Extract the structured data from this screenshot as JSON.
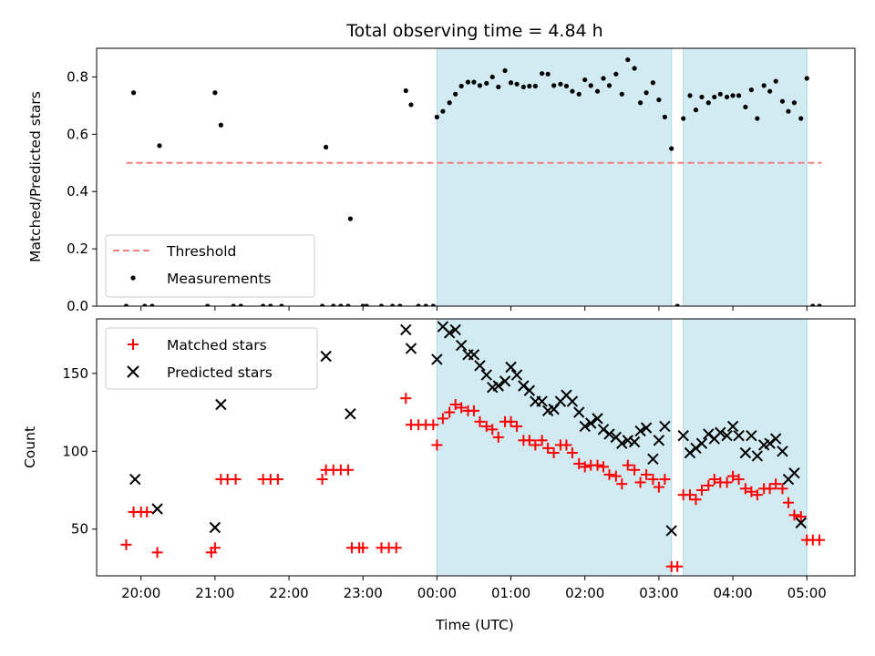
{
  "chart_data": [
    {
      "panel": "top",
      "type": "scatter",
      "title": "Total observing time = 4.84 h",
      "xlabel": "",
      "ylabel": "Matched/Predicted stars",
      "xlim": [
        -4.6,
        5.65
      ],
      "ylim": [
        0,
        0.9
      ],
      "yticks": [
        0.0,
        0.2,
        0.4,
        0.6,
        0.8
      ],
      "ytick_labels": [
        "0.0",
        "0.2",
        "0.4",
        "0.6",
        "0.8"
      ],
      "shaded_intervals": [
        [
          0.0,
          3.17
        ],
        [
          3.33,
          5.0
        ]
      ],
      "shade_color": "#add8e6",
      "threshold": {
        "name": "Threshold",
        "value": 0.5,
        "x_range": [
          -4.2,
          5.2
        ],
        "color": "#f08080"
      },
      "legend": {
        "position": "lower left",
        "entries": [
          "Threshold",
          "Measurements"
        ]
      },
      "series": [
        {
          "name": "Measurements",
          "color": "#000000",
          "points": [
            [
              -4.2,
              0.0
            ],
            [
              -4.1,
              0.745
            ],
            [
              -3.95,
              0.0
            ],
            [
              -3.85,
              0.0
            ],
            [
              -3.75,
              0.56
            ],
            [
              -3.1,
              0.0
            ],
            [
              -3.0,
              0.745
            ],
            [
              -2.92,
              0.632
            ],
            [
              -2.75,
              0.0
            ],
            [
              -2.65,
              0.0
            ],
            [
              -2.35,
              0.0
            ],
            [
              -2.25,
              0.0
            ],
            [
              -2.1,
              0.0
            ],
            [
              -1.55,
              0.0
            ],
            [
              -1.5,
              0.555
            ],
            [
              -1.4,
              0.0
            ],
            [
              -1.3,
              0.0
            ],
            [
              -1.2,
              0.0
            ],
            [
              -1.17,
              0.305
            ],
            [
              -1.0,
              0.0
            ],
            [
              -0.95,
              0.0
            ],
            [
              -0.75,
              0.0
            ],
            [
              -0.6,
              0.0
            ],
            [
              -0.5,
              0.0
            ],
            [
              -0.42,
              0.752
            ],
            [
              -0.35,
              0.703
            ],
            [
              -0.25,
              0.0
            ],
            [
              -0.15,
              0.0
            ],
            [
              -0.05,
              0.0
            ],
            [
              0.0,
              0.66
            ],
            [
              0.08,
              0.68
            ],
            [
              0.17,
              0.71
            ],
            [
              0.25,
              0.74
            ],
            [
              0.33,
              0.768
            ],
            [
              0.42,
              0.782
            ],
            [
              0.5,
              0.782
            ],
            [
              0.58,
              0.77
            ],
            [
              0.67,
              0.778
            ],
            [
              0.75,
              0.8
            ],
            [
              0.83,
              0.765
            ],
            [
              0.92,
              0.822
            ],
            [
              1.0,
              0.78
            ],
            [
              1.08,
              0.775
            ],
            [
              1.17,
              0.765
            ],
            [
              1.25,
              0.768
            ],
            [
              1.33,
              0.768
            ],
            [
              1.42,
              0.812
            ],
            [
              1.5,
              0.81
            ],
            [
              1.58,
              0.77
            ],
            [
              1.67,
              0.775
            ],
            [
              1.75,
              0.768
            ],
            [
              1.83,
              0.75
            ],
            [
              1.92,
              0.74
            ],
            [
              2.0,
              0.79
            ],
            [
              2.08,
              0.77
            ],
            [
              2.17,
              0.75
            ],
            [
              2.25,
              0.795
            ],
            [
              2.33,
              0.77
            ],
            [
              2.42,
              0.81
            ],
            [
              2.5,
              0.74
            ],
            [
              2.58,
              0.86
            ],
            [
              2.67,
              0.83
            ],
            [
              2.75,
              0.71
            ],
            [
              2.83,
              0.745
            ],
            [
              2.92,
              0.78
            ],
            [
              3.0,
              0.72
            ],
            [
              3.08,
              0.66
            ],
            [
              3.17,
              0.55
            ],
            [
              3.25,
              0.0
            ],
            [
              3.33,
              0.655
            ],
            [
              3.42,
              0.735
            ],
            [
              3.5,
              0.685
            ],
            [
              3.58,
              0.73
            ],
            [
              3.67,
              0.71
            ],
            [
              3.75,
              0.73
            ],
            [
              3.83,
              0.74
            ],
            [
              3.92,
              0.73
            ],
            [
              4.0,
              0.735
            ],
            [
              4.08,
              0.735
            ],
            [
              4.17,
              0.695
            ],
            [
              4.25,
              0.755
            ],
            [
              4.33,
              0.655
            ],
            [
              4.42,
              0.77
            ],
            [
              4.5,
              0.75
            ],
            [
              4.58,
              0.785
            ],
            [
              4.67,
              0.715
            ],
            [
              4.75,
              0.68
            ],
            [
              4.83,
              0.71
            ],
            [
              4.92,
              0.655
            ],
            [
              5.0,
              0.795
            ],
            [
              5.08,
              0.0
            ],
            [
              5.17,
              0.0
            ]
          ]
        }
      ]
    },
    {
      "panel": "bottom",
      "type": "scatter",
      "title": "",
      "xlabel": "Time (UTC)",
      "ylabel": "Count",
      "xlim": [
        -4.6,
        5.65
      ],
      "ylim": [
        20,
        185
      ],
      "xticks": [
        -4,
        -3,
        -2,
        -1,
        0,
        1,
        2,
        3,
        4,
        5
      ],
      "xtick_labels": [
        "20:00",
        "21:00",
        "22:00",
        "23:00",
        "00:00",
        "01:00",
        "02:00",
        "03:00",
        "04:00",
        "05:00"
      ],
      "yticks": [
        50,
        100,
        150
      ],
      "ytick_labels": [
        "50",
        "100",
        "150"
      ],
      "shaded_intervals": [
        [
          0.0,
          3.17
        ],
        [
          3.33,
          5.0
        ]
      ],
      "shade_color": "#add8e6",
      "legend": {
        "position": "upper left",
        "entries": [
          "Matched stars",
          "Predicted stars"
        ]
      },
      "series": [
        {
          "name": "Matched stars",
          "marker": "plus",
          "color": "#ff0000",
          "points": [
            [
              -4.2,
              40
            ],
            [
              -4.1,
              61
            ],
            [
              -4.0,
              61
            ],
            [
              -3.92,
              61
            ],
            [
              -3.78,
              35
            ],
            [
              -3.05,
              35
            ],
            [
              -3.0,
              38
            ],
            [
              -2.92,
              82
            ],
            [
              -2.83,
              82
            ],
            [
              -2.72,
              82
            ],
            [
              -2.35,
              82
            ],
            [
              -2.25,
              82
            ],
            [
              -2.15,
              82
            ],
            [
              -1.55,
              82
            ],
            [
              -1.5,
              88
            ],
            [
              -1.4,
              88
            ],
            [
              -1.3,
              88
            ],
            [
              -1.2,
              88
            ],
            [
              -1.15,
              38
            ],
            [
              -1.05,
              38
            ],
            [
              -1.0,
              38
            ],
            [
              -0.75,
              38
            ],
            [
              -0.65,
              38
            ],
            [
              -0.55,
              38
            ],
            [
              -0.42,
              134
            ],
            [
              -0.35,
              117
            ],
            [
              -0.25,
              117
            ],
            [
              -0.15,
              117
            ],
            [
              -0.05,
              117
            ],
            [
              0.0,
              104
            ],
            [
              0.08,
              121
            ],
            [
              0.17,
              125
            ],
            [
              0.25,
              130
            ],
            [
              0.33,
              128
            ],
            [
              0.42,
              126
            ],
            [
              0.5,
              126
            ],
            [
              0.58,
              119
            ],
            [
              0.67,
              116
            ],
            [
              0.75,
              114
            ],
            [
              0.83,
              109
            ],
            [
              0.92,
              119
            ],
            [
              1.0,
              119
            ],
            [
              1.08,
              116
            ],
            [
              1.17,
              107
            ],
            [
              1.25,
              107
            ],
            [
              1.33,
              104
            ],
            [
              1.42,
              107
            ],
            [
              1.5,
              102
            ],
            [
              1.58,
              99
            ],
            [
              1.67,
              104
            ],
            [
              1.75,
              104
            ],
            [
              1.83,
              99
            ],
            [
              1.92,
              92
            ],
            [
              2.0,
              90
            ],
            [
              2.08,
              91
            ],
            [
              2.17,
              91
            ],
            [
              2.25,
              90
            ],
            [
              2.33,
              85
            ],
            [
              2.42,
              84
            ],
            [
              2.5,
              79
            ],
            [
              2.58,
              91
            ],
            [
              2.67,
              88
            ],
            [
              2.75,
              80
            ],
            [
              2.83,
              85
            ],
            [
              2.92,
              82
            ],
            [
              3.0,
              77
            ],
            [
              3.08,
              82
            ],
            [
              3.17,
              26
            ],
            [
              3.25,
              26
            ],
            [
              3.33,
              72
            ],
            [
              3.42,
              72
            ],
            [
              3.5,
              69
            ],
            [
              3.58,
              75
            ],
            [
              3.67,
              78
            ],
            [
              3.75,
              82
            ],
            [
              3.83,
              80
            ],
            [
              3.92,
              80
            ],
            [
              4.0,
              84
            ],
            [
              4.08,
              82
            ],
            [
              4.17,
              76
            ],
            [
              4.25,
              74
            ],
            [
              4.33,
              72
            ],
            [
              4.42,
              76
            ],
            [
              4.5,
              76
            ],
            [
              4.58,
              79
            ],
            [
              4.67,
              76
            ],
            [
              4.75,
              67
            ],
            [
              4.83,
              59
            ],
            [
              4.92,
              58
            ],
            [
              5.0,
              43
            ],
            [
              5.08,
              43
            ],
            [
              5.17,
              43
            ]
          ]
        },
        {
          "name": "Predicted stars",
          "marker": "x",
          "color": "#000000",
          "points": [
            [
              -4.08,
              82
            ],
            [
              -3.78,
              63
            ],
            [
              -3.0,
              51
            ],
            [
              -2.92,
              130
            ],
            [
              -1.5,
              161
            ],
            [
              -1.17,
              124
            ],
            [
              -0.42,
              178
            ],
            [
              -0.35,
              166
            ],
            [
              0.0,
              159
            ],
            [
              0.08,
              180
            ],
            [
              0.17,
              176
            ],
            [
              0.25,
              178
            ],
            [
              0.33,
              168
            ],
            [
              0.42,
              162
            ],
            [
              0.5,
              162
            ],
            [
              0.58,
              155
            ],
            [
              0.67,
              149
            ],
            [
              0.75,
              141
            ],
            [
              0.83,
              142
            ],
            [
              0.92,
              145
            ],
            [
              1.0,
              154
            ],
            [
              1.08,
              149
            ],
            [
              1.17,
              142
            ],
            [
              1.25,
              139
            ],
            [
              1.33,
              132
            ],
            [
              1.42,
              132
            ],
            [
              1.5,
              126
            ],
            [
              1.58,
              127
            ],
            [
              1.67,
              132
            ],
            [
              1.75,
              136
            ],
            [
              1.83,
              132
            ],
            [
              1.92,
              125
            ],
            [
              2.0,
              116
            ],
            [
              2.08,
              118
            ],
            [
              2.17,
              121
            ],
            [
              2.25,
              114
            ],
            [
              2.33,
              111
            ],
            [
              2.42,
              109
            ],
            [
              2.5,
              105
            ],
            [
              2.58,
              107
            ],
            [
              2.67,
              106
            ],
            [
              2.75,
              113
            ],
            [
              2.83,
              115
            ],
            [
              2.92,
              95
            ],
            [
              3.0,
              107
            ],
            [
              3.08,
              116
            ],
            [
              3.17,
              49
            ],
            [
              3.33,
              110
            ],
            [
              3.42,
              99
            ],
            [
              3.5,
              102
            ],
            [
              3.58,
              105
            ],
            [
              3.67,
              111
            ],
            [
              3.75,
              108
            ],
            [
              3.83,
              112
            ],
            [
              3.92,
              110
            ],
            [
              4.0,
              116
            ],
            [
              4.08,
              110
            ],
            [
              4.17,
              99
            ],
            [
              4.25,
              110
            ],
            [
              4.33,
              97
            ],
            [
              4.42,
              104
            ],
            [
              4.5,
              105
            ],
            [
              4.58,
              108
            ],
            [
              4.67,
              100
            ],
            [
              4.75,
              82
            ],
            [
              4.83,
              86
            ],
            [
              4.92,
              54
            ]
          ]
        }
      ]
    }
  ]
}
